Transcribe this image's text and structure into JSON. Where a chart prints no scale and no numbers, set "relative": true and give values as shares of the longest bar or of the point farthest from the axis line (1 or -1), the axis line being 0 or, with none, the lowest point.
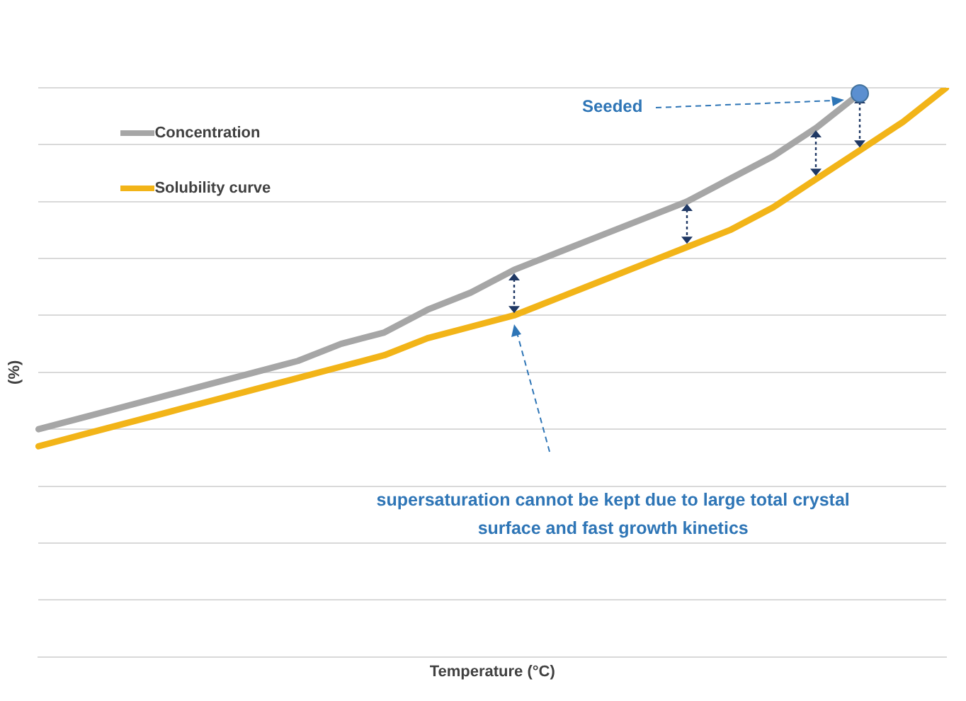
{
  "chart_data": {
    "type": "line",
    "relative": true,
    "xlabel": "Temperature (°C)",
    "ylabel": "(%)",
    "grid": "y",
    "legend": "top left",
    "marker": "none",
    "line_style": "solid",
    "categories": [
      null,
      null,
      null,
      null,
      null,
      null,
      null,
      null,
      null,
      null,
      null,
      null,
      null,
      null,
      null,
      null,
      null,
      null,
      null,
      null,
      null,
      null
    ],
    "series": [
      {
        "name": "Concentration",
        "color": "#a6a6a6",
        "values": [
          0.4,
          0.42,
          0.44,
          0.46,
          0.48,
          0.5,
          0.52,
          0.55,
          0.57,
          0.61,
          0.64,
          0.68,
          0.71,
          0.74,
          0.77,
          0.8,
          0.84,
          0.88,
          0.93,
          0.99,
          null,
          null
        ]
      },
      {
        "name": "Solubility curve",
        "color": "#f2b418",
        "values": [
          0.37,
          0.39,
          0.41,
          0.43,
          0.45,
          0.47,
          0.49,
          0.51,
          0.53,
          0.56,
          0.58,
          0.6,
          0.63,
          0.66,
          0.69,
          0.72,
          0.75,
          0.79,
          0.84,
          0.89,
          0.94,
          1
        ]
      }
    ],
    "annotations": [
      "Seeded",
      "supersaturation cannot be kept due to large total crystal surface and fast growth kinetics"
    ]
  }
}
